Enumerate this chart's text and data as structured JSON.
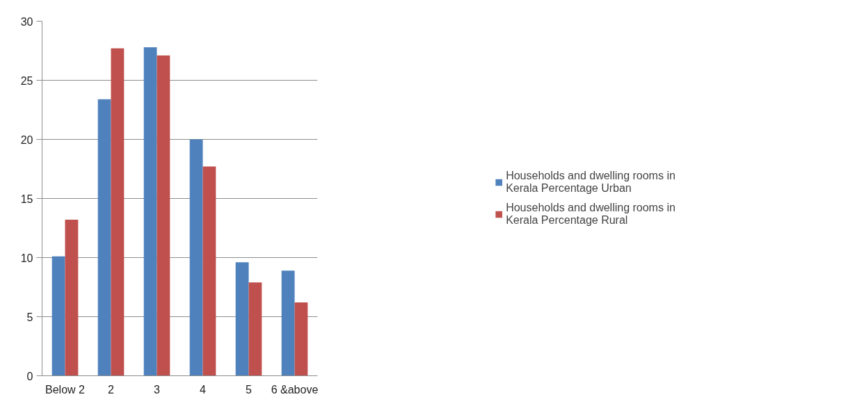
{
  "chart_data": {
    "type": "bar",
    "categories": [
      "Below 2",
      "2",
      "3",
      "4",
      "5",
      "6 &above"
    ],
    "series": [
      {
        "name": "Households and dwelling rooms in Kerala Percentage Urban",
        "color": "#4f81bd",
        "values": [
          10.1,
          23.4,
          27.8,
          20.0,
          9.6,
          8.9
        ]
      },
      {
        "name": "Households and dwelling rooms in Kerala Percentage Rural",
        "color": "#c0504d",
        "values": [
          13.2,
          27.7,
          27.1,
          17.7,
          7.9,
          6.2
        ]
      }
    ],
    "ylim": [
      0,
      30
    ],
    "yticks": [
      0,
      5,
      10,
      15,
      20,
      25,
      30
    ],
    "grid": "y",
    "legend": "right"
  }
}
